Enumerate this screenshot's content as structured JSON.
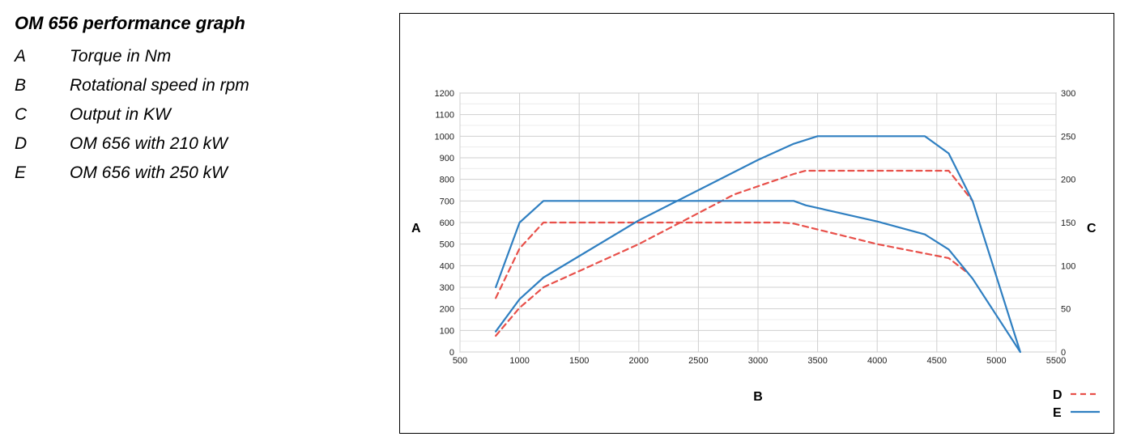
{
  "legend": {
    "title": "OM 656 performance graph",
    "items": [
      {
        "key": "A",
        "text": "Torque in Nm"
      },
      {
        "key": "B",
        "text": "Rotational speed in rpm"
      },
      {
        "key": "C",
        "text": "Output in KW"
      },
      {
        "key": "D",
        "text": "OM 656 with 210 kW"
      },
      {
        "key": "E",
        "text": "OM 656 with 250 kW"
      }
    ]
  },
  "chart_data": {
    "type": "line",
    "xlabel": "B",
    "ylabel_left": "A",
    "ylabel_right": "C",
    "xlim": [
      500,
      5500
    ],
    "ylim_left": [
      0,
      1200
    ],
    "ylim_right": [
      0,
      300
    ],
    "xticks": [
      500,
      1000,
      1500,
      2000,
      2500,
      3000,
      3500,
      4000,
      4500,
      5000,
      5500
    ],
    "yticks_left": [
      0,
      100,
      200,
      300,
      400,
      500,
      600,
      700,
      800,
      900,
      1000,
      1100,
      1200
    ],
    "yticks_right": [
      0,
      50,
      100,
      150,
      200,
      250,
      300
    ],
    "grid": true,
    "legend_position": "bottom-right",
    "colors": {
      "D": "#e8504a",
      "E": "#2f7fc1"
    },
    "series": [
      {
        "name": "D",
        "kind": "torque",
        "style": "dashed",
        "x": [
          800,
          1000,
          1200,
          3200,
          3300,
          4000,
          4600,
          4750
        ],
        "y": [
          250,
          480,
          600,
          600,
          595,
          500,
          435,
          370
        ]
      },
      {
        "name": "D",
        "kind": "output",
        "style": "dashed",
        "x": [
          800,
          1000,
          1200,
          2000,
          2800,
          3300,
          3400,
          4600,
          4800
        ],
        "y": [
          75,
          205,
          300,
          500,
          730,
          825,
          840,
          840,
          700
        ]
      },
      {
        "name": "E",
        "kind": "torque",
        "style": "solid",
        "x": [
          800,
          1000,
          1200,
          3300,
          3400,
          4000,
          4400,
          4600,
          4800,
          5000,
          5200
        ],
        "y": [
          300,
          600,
          700,
          700,
          680,
          605,
          545,
          475,
          340,
          170,
          0
        ]
      },
      {
        "name": "E",
        "kind": "output",
        "style": "solid",
        "x": [
          800,
          1000,
          1200,
          2000,
          3000,
          3300,
          3500,
          4400,
          4600,
          4800,
          5200
        ],
        "y": [
          95,
          245,
          345,
          610,
          890,
          965,
          1000,
          1000,
          920,
          700,
          0
        ]
      }
    ]
  }
}
